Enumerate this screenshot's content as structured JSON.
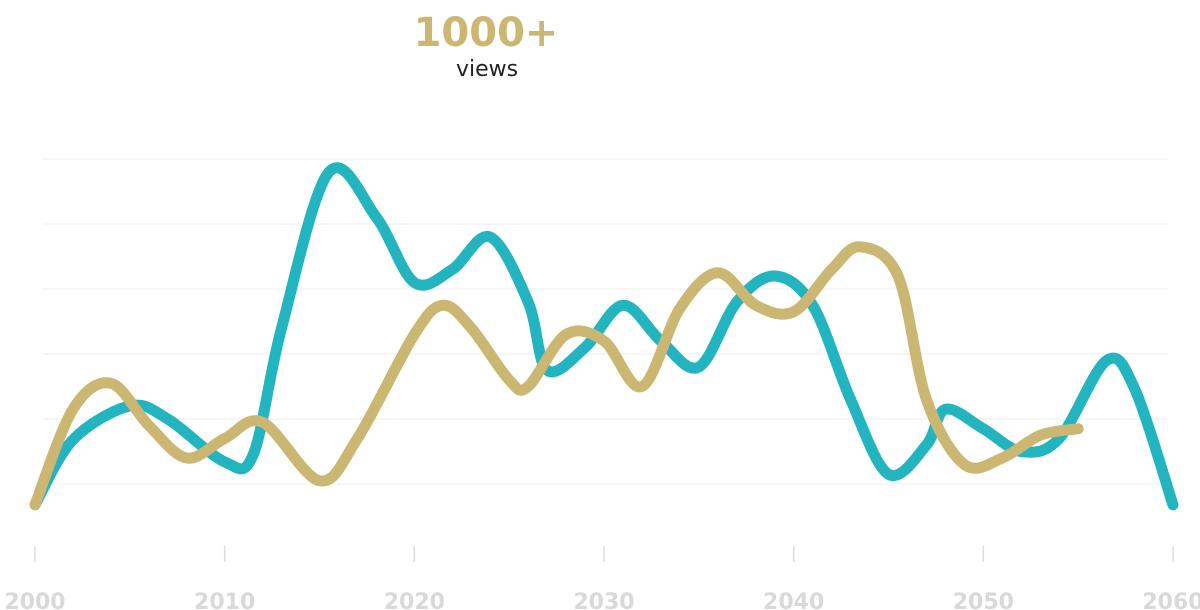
{
  "chart_data": {
    "type": "line",
    "annotation_value": "1000+",
    "annotation_label": "views",
    "xlim": [
      2000,
      2060
    ],
    "xticks": [
      2000,
      2010,
      2020,
      2030,
      2040,
      2050,
      2060
    ],
    "ylim": [
      -0.5,
      5
    ],
    "yticks": [
      0,
      1,
      2,
      3,
      4,
      5
    ],
    "grid": true,
    "series": [
      {
        "color": "#22b5bf",
        "x": [
          2000,
          2002,
          2005,
          2007,
          2010,
          2011.5,
          2013,
          2015.5,
          2018,
          2020,
          2022,
          2024,
          2026,
          2027,
          2029,
          2031,
          2033,
          2035,
          2037,
          2039,
          2041,
          2043,
          2045,
          2047,
          2048,
          2050,
          2052,
          2054,
          2056.5,
          2058,
          2060
        ],
        "values": [
          -0.32,
          0.68,
          1.2,
          1.0,
          0.34,
          0.45,
          2.4,
          4.8,
          4.1,
          3.1,
          3.3,
          3.8,
          2.8,
          1.75,
          2.1,
          2.75,
          2.2,
          1.8,
          2.8,
          3.2,
          2.75,
          1.3,
          0.15,
          0.6,
          1.15,
          0.85,
          0.5,
          0.7,
          1.9,
          1.45,
          -0.32
        ]
      },
      {
        "color": "#cbb772",
        "x": [
          2000,
          2002,
          2004,
          2006,
          2008,
          2010,
          2012,
          2015,
          2017,
          2020,
          2021.5,
          2023,
          2025,
          2026,
          2028,
          2030,
          2032,
          2034,
          2036,
          2038,
          2040,
          2042,
          2043.5,
          2045.5,
          2047,
          2049,
          2051,
          2053,
          2055
        ],
        "values": [
          -0.32,
          1.15,
          1.55,
          0.9,
          0.4,
          0.7,
          0.95,
          0.05,
          0.7,
          2.3,
          2.75,
          2.4,
          1.6,
          1.5,
          2.3,
          2.2,
          1.5,
          2.7,
          3.25,
          2.75,
          2.65,
          3.3,
          3.65,
          3.2,
          1.3,
          0.3,
          0.4,
          0.75,
          0.85
        ]
      }
    ]
  }
}
